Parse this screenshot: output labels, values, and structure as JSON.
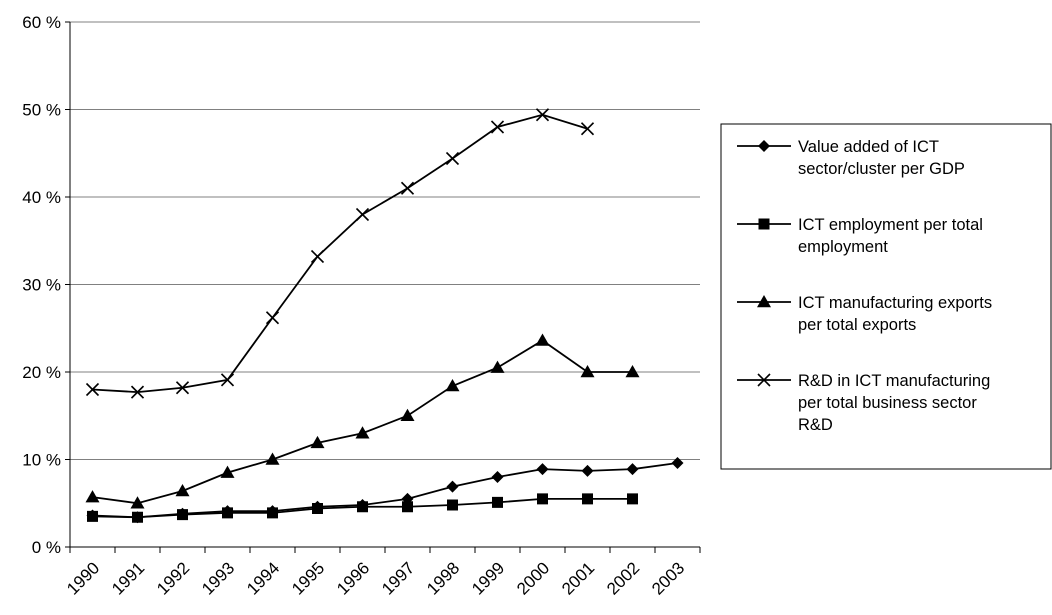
{
  "chart_data": {
    "type": "line",
    "title": "",
    "xlabel": "",
    "ylabel": "",
    "categories": [
      "1990",
      "1991",
      "1992",
      "1993",
      "1994",
      "1995",
      "1996",
      "1997",
      "1998",
      "1999",
      "2000",
      "2001",
      "2002",
      "2003"
    ],
    "ylim": [
      0,
      60
    ],
    "y_ticks": [
      0,
      10,
      20,
      30,
      40,
      50,
      60
    ],
    "y_tick_labels": [
      "0 %",
      "10 %",
      "20 %",
      "30 %",
      "40 %",
      "50 %",
      "60 %"
    ],
    "grid": "horizontal",
    "legend_position": "right",
    "series": [
      {
        "name": "Value added of ICT sector/cluster per GDP",
        "legend_lines": [
          "Value added of ICT",
          "sector/cluster per GDP"
        ],
        "marker": "diamond",
        "values": [
          3.6,
          3.4,
          3.8,
          4.1,
          4.1,
          4.6,
          4.8,
          5.5,
          6.9,
          8.0,
          8.9,
          8.7,
          8.9,
          9.6
        ]
      },
      {
        "name": "ICT employment per total employment",
        "legend_lines": [
          "ICT employment per total",
          "employment"
        ],
        "marker": "square",
        "values": [
          3.5,
          3.4,
          3.7,
          3.9,
          3.9,
          4.4,
          4.6,
          4.6,
          4.8,
          5.1,
          5.5,
          5.5,
          5.5,
          null
        ]
      },
      {
        "name": "ICT manufacturing exports per total exports",
        "legend_lines": [
          "ICT manufacturing exports",
          "per total exports"
        ],
        "marker": "triangle",
        "values": [
          5.7,
          5.0,
          6.4,
          8.5,
          10.0,
          11.9,
          13.0,
          15.0,
          18.4,
          20.5,
          23.6,
          20.0,
          20.0,
          null
        ]
      },
      {
        "name": "R&D in ICT manufacturing per total business sector R&D",
        "legend_lines": [
          "R&D in ICT manufacturing",
          "per total business sector",
          "R&D"
        ],
        "marker": "x",
        "values": [
          18.0,
          17.7,
          18.2,
          19.1,
          26.2,
          33.2,
          38.0,
          41.0,
          44.4,
          48.0,
          49.4,
          47.8,
          null,
          null
        ]
      }
    ]
  },
  "colors": {
    "line": "#000000",
    "grid": "#808080",
    "background": "#ffffff"
  }
}
